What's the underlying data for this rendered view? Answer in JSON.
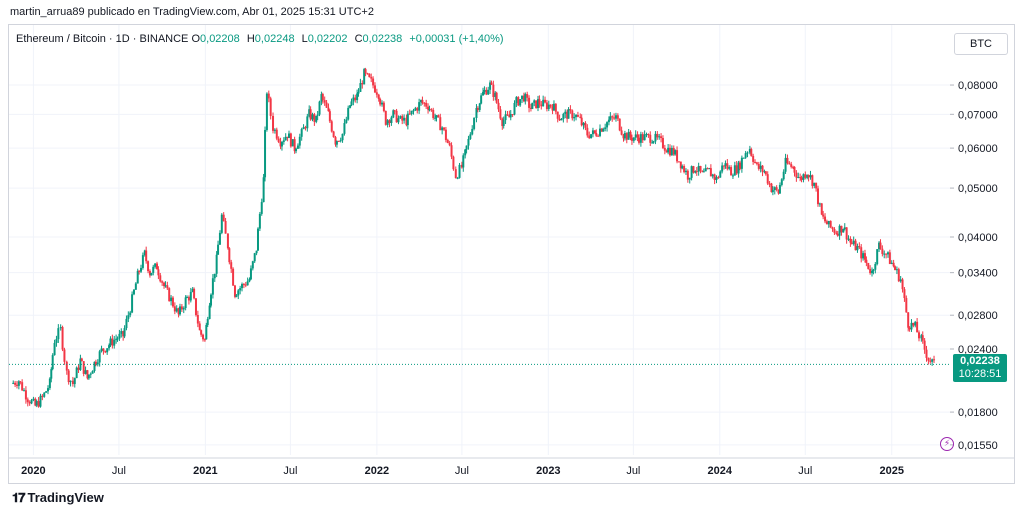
{
  "header": {
    "attribution": "martin_arrua89 publicado en TradingView.com, Abr 01, 2025 15:31 UTC+2"
  },
  "legend": {
    "symbol": "Ethereum / Bitcoin · 1D · BINANCE",
    "o_label": "O",
    "o_value": "0,02208",
    "h_label": "H",
    "h_value": "0,02248",
    "l_label": "L",
    "l_value": "0,02202",
    "c_label": "C",
    "c_value": "0,02238",
    "change": "+0,00031 (+1,40%)"
  },
  "currency_button": "BTC",
  "price_tag": {
    "price": "0,02238",
    "countdown": "10:28:51"
  },
  "footer": {
    "logo_text": "TradingView"
  },
  "colors": {
    "up": "#089981",
    "down": "#f23645",
    "last_line": "#089981",
    "grid": "#f0f3fa",
    "text": "#131722"
  },
  "chart_data": {
    "type": "candlestick",
    "symbol": "ETH/BTC",
    "interval": "1D",
    "y_scale": "log",
    "ylim": [
      0.0148,
      0.0905
    ],
    "y_ticks": [
      {
        "value": 0.08,
        "label": "0,08000"
      },
      {
        "value": 0.07,
        "label": "0,07000"
      },
      {
        "value": 0.06,
        "label": "0,06000"
      },
      {
        "value": 0.05,
        "label": "0,05000"
      },
      {
        "value": 0.04,
        "label": "0,04000"
      },
      {
        "value": 0.034,
        "label": "0,03400"
      },
      {
        "value": 0.028,
        "label": "0,02800"
      },
      {
        "value": 0.024,
        "label": "0,02400"
      },
      {
        "value": 0.018,
        "label": "0,01800"
      },
      {
        "value": 0.0155,
        "label": "0,01550"
      }
    ],
    "x_ticks": [
      {
        "date": "2020-01-01",
        "label": "2020",
        "bold": true
      },
      {
        "date": "2020-07-01",
        "label": "Jul",
        "bold": false
      },
      {
        "date": "2021-01-01",
        "label": "2021",
        "bold": true
      },
      {
        "date": "2021-07-01",
        "label": "Jul",
        "bold": false
      },
      {
        "date": "2022-01-01",
        "label": "2022",
        "bold": true
      },
      {
        "date": "2022-07-01",
        "label": "Jul",
        "bold": false
      },
      {
        "date": "2023-01-01",
        "label": "2023",
        "bold": true
      },
      {
        "date": "2023-07-01",
        "label": "Jul",
        "bold": false
      },
      {
        "date": "2024-01-01",
        "label": "2024",
        "bold": true
      },
      {
        "date": "2024-07-01",
        "label": "Jul",
        "bold": false
      },
      {
        "date": "2025-01-01",
        "label": "2025",
        "bold": true
      }
    ],
    "x_range": [
      "2019-11-10",
      "2025-05-05"
    ],
    "grid": true,
    "last_close": 0.02238,
    "series": [
      {
        "date": "2019-11-15",
        "close": 0.0205
      },
      {
        "date": "2019-12-01",
        "close": 0.0208
      },
      {
        "date": "2019-12-20",
        "close": 0.0192
      },
      {
        "date": "2020-01-05",
        "close": 0.0185
      },
      {
        "date": "2020-01-20",
        "close": 0.0192
      },
      {
        "date": "2020-02-05",
        "close": 0.0205
      },
      {
        "date": "2020-02-15",
        "close": 0.025
      },
      {
        "date": "2020-02-28",
        "close": 0.0262
      },
      {
        "date": "2020-03-12",
        "close": 0.0215
      },
      {
        "date": "2020-03-25",
        "close": 0.0205
      },
      {
        "date": "2020-04-10",
        "close": 0.0228
      },
      {
        "date": "2020-04-25",
        "close": 0.021
      },
      {
        "date": "2020-05-10",
        "close": 0.0225
      },
      {
        "date": "2020-05-25",
        "close": 0.0238
      },
      {
        "date": "2020-06-10",
        "close": 0.0245
      },
      {
        "date": "2020-06-25",
        "close": 0.0252
      },
      {
        "date": "2020-07-10",
        "close": 0.0255
      },
      {
        "date": "2020-07-25",
        "close": 0.029
      },
      {
        "date": "2020-08-10",
        "close": 0.0335
      },
      {
        "date": "2020-08-25",
        "close": 0.037
      },
      {
        "date": "2020-09-05",
        "close": 0.034
      },
      {
        "date": "2020-09-20",
        "close": 0.035
      },
      {
        "date": "2020-10-05",
        "close": 0.032
      },
      {
        "date": "2020-10-20",
        "close": 0.03
      },
      {
        "date": "2020-11-05",
        "close": 0.028
      },
      {
        "date": "2020-11-20",
        "close": 0.03
      },
      {
        "date": "2020-12-05",
        "close": 0.031
      },
      {
        "date": "2020-12-20",
        "close": 0.026
      },
      {
        "date": "2020-12-31",
        "close": 0.025
      },
      {
        "date": "2021-01-10",
        "close": 0.03
      },
      {
        "date": "2021-01-25",
        "close": 0.036
      },
      {
        "date": "2021-02-05",
        "close": 0.044
      },
      {
        "date": "2021-02-18",
        "close": 0.0385
      },
      {
        "date": "2021-03-05",
        "close": 0.031
      },
      {
        "date": "2021-03-20",
        "close": 0.032
      },
      {
        "date": "2021-04-05",
        "close": 0.033
      },
      {
        "date": "2021-04-20",
        "close": 0.038
      },
      {
        "date": "2021-05-05",
        "close": 0.052
      },
      {
        "date": "2021-05-12",
        "close": 0.078
      },
      {
        "date": "2021-05-25",
        "close": 0.066
      },
      {
        "date": "2021-06-10",
        "close": 0.062
      },
      {
        "date": "2021-06-25",
        "close": 0.064
      },
      {
        "date": "2021-07-10",
        "close": 0.06
      },
      {
        "date": "2021-07-25",
        "close": 0.064
      },
      {
        "date": "2021-08-10",
        "close": 0.07
      },
      {
        "date": "2021-08-25",
        "close": 0.068
      },
      {
        "date": "2021-09-05",
        "close": 0.076
      },
      {
        "date": "2021-09-20",
        "close": 0.07
      },
      {
        "date": "2021-10-05",
        "close": 0.062
      },
      {
        "date": "2021-10-20",
        "close": 0.064
      },
      {
        "date": "2021-11-05",
        "close": 0.073
      },
      {
        "date": "2021-11-20",
        "close": 0.076
      },
      {
        "date": "2021-12-05",
        "close": 0.084
      },
      {
        "date": "2021-12-20",
        "close": 0.081
      },
      {
        "date": "2022-01-05",
        "close": 0.077
      },
      {
        "date": "2022-01-20",
        "close": 0.068
      },
      {
        "date": "2022-02-05",
        "close": 0.07
      },
      {
        "date": "2022-02-20",
        "close": 0.068
      },
      {
        "date": "2022-03-05",
        "close": 0.068
      },
      {
        "date": "2022-03-20",
        "close": 0.071
      },
      {
        "date": "2022-04-05",
        "close": 0.074
      },
      {
        "date": "2022-04-20",
        "close": 0.073
      },
      {
        "date": "2022-05-05",
        "close": 0.069
      },
      {
        "date": "2022-05-20",
        "close": 0.066
      },
      {
        "date": "2022-06-05",
        "close": 0.06
      },
      {
        "date": "2022-06-18",
        "close": 0.053
      },
      {
        "date": "2022-07-01",
        "close": 0.055
      },
      {
        "date": "2022-07-15",
        "close": 0.062
      },
      {
        "date": "2022-08-01",
        "close": 0.072
      },
      {
        "date": "2022-08-15",
        "close": 0.077
      },
      {
        "date": "2022-08-30",
        "close": 0.08
      },
      {
        "date": "2022-09-10",
        "close": 0.076
      },
      {
        "date": "2022-09-25",
        "close": 0.068
      },
      {
        "date": "2022-10-10",
        "close": 0.069
      },
      {
        "date": "2022-10-25",
        "close": 0.074
      },
      {
        "date": "2022-11-10",
        "close": 0.076
      },
      {
        "date": "2022-11-25",
        "close": 0.072
      },
      {
        "date": "2022-12-10",
        "close": 0.074
      },
      {
        "date": "2022-12-25",
        "close": 0.073
      },
      {
        "date": "2023-01-10",
        "close": 0.073
      },
      {
        "date": "2023-01-25",
        "close": 0.069
      },
      {
        "date": "2023-02-10",
        "close": 0.07
      },
      {
        "date": "2023-02-25",
        "close": 0.07
      },
      {
        "date": "2023-03-10",
        "close": 0.068
      },
      {
        "date": "2023-03-25",
        "close": 0.064
      },
      {
        "date": "2023-04-10",
        "close": 0.064
      },
      {
        "date": "2023-04-25",
        "close": 0.066
      },
      {
        "date": "2023-05-10",
        "close": 0.068
      },
      {
        "date": "2023-05-25",
        "close": 0.069
      },
      {
        "date": "2023-06-10",
        "close": 0.064
      },
      {
        "date": "2023-06-25",
        "close": 0.063
      },
      {
        "date": "2023-07-10",
        "close": 0.063
      },
      {
        "date": "2023-07-25",
        "close": 0.063
      },
      {
        "date": "2023-08-10",
        "close": 0.063
      },
      {
        "date": "2023-08-25",
        "close": 0.062
      },
      {
        "date": "2023-09-10",
        "close": 0.06
      },
      {
        "date": "2023-09-25",
        "close": 0.059
      },
      {
        "date": "2023-10-10",
        "close": 0.056
      },
      {
        "date": "2023-10-25",
        "close": 0.053
      },
      {
        "date": "2023-11-10",
        "close": 0.055
      },
      {
        "date": "2023-11-25",
        "close": 0.053
      },
      {
        "date": "2023-12-10",
        "close": 0.054
      },
      {
        "date": "2023-12-25",
        "close": 0.052
      },
      {
        "date": "2024-01-10",
        "close": 0.056
      },
      {
        "date": "2024-01-25",
        "close": 0.054
      },
      {
        "date": "2024-02-10",
        "close": 0.055
      },
      {
        "date": "2024-02-25",
        "close": 0.059
      },
      {
        "date": "2024-03-05",
        "close": 0.06
      },
      {
        "date": "2024-03-20",
        "close": 0.055
      },
      {
        "date": "2024-04-05",
        "close": 0.054
      },
      {
        "date": "2024-04-20",
        "close": 0.05
      },
      {
        "date": "2024-05-05",
        "close": 0.049
      },
      {
        "date": "2024-05-20",
        "close": 0.056
      },
      {
        "date": "2024-06-05",
        "close": 0.055
      },
      {
        "date": "2024-06-20",
        "close": 0.052
      },
      {
        "date": "2024-07-05",
        "close": 0.054
      },
      {
        "date": "2024-07-20",
        "close": 0.051
      },
      {
        "date": "2024-08-05",
        "close": 0.044
      },
      {
        "date": "2024-08-20",
        "close": 0.042
      },
      {
        "date": "2024-09-05",
        "close": 0.041
      },
      {
        "date": "2024-09-20",
        "close": 0.042
      },
      {
        "date": "2024-10-05",
        "close": 0.039
      },
      {
        "date": "2024-10-20",
        "close": 0.038
      },
      {
        "date": "2024-11-05",
        "close": 0.036
      },
      {
        "date": "2024-11-20",
        "close": 0.034
      },
      {
        "date": "2024-12-05",
        "close": 0.0385
      },
      {
        "date": "2024-12-20",
        "close": 0.037
      },
      {
        "date": "2025-01-05",
        "close": 0.035
      },
      {
        "date": "2025-01-20",
        "close": 0.033
      },
      {
        "date": "2025-02-05",
        "close": 0.027
      },
      {
        "date": "2025-02-20",
        "close": 0.0265
      },
      {
        "date": "2025-03-05",
        "close": 0.025
      },
      {
        "date": "2025-03-20",
        "close": 0.023
      },
      {
        "date": "2025-04-01",
        "close": 0.02238
      }
    ]
  }
}
